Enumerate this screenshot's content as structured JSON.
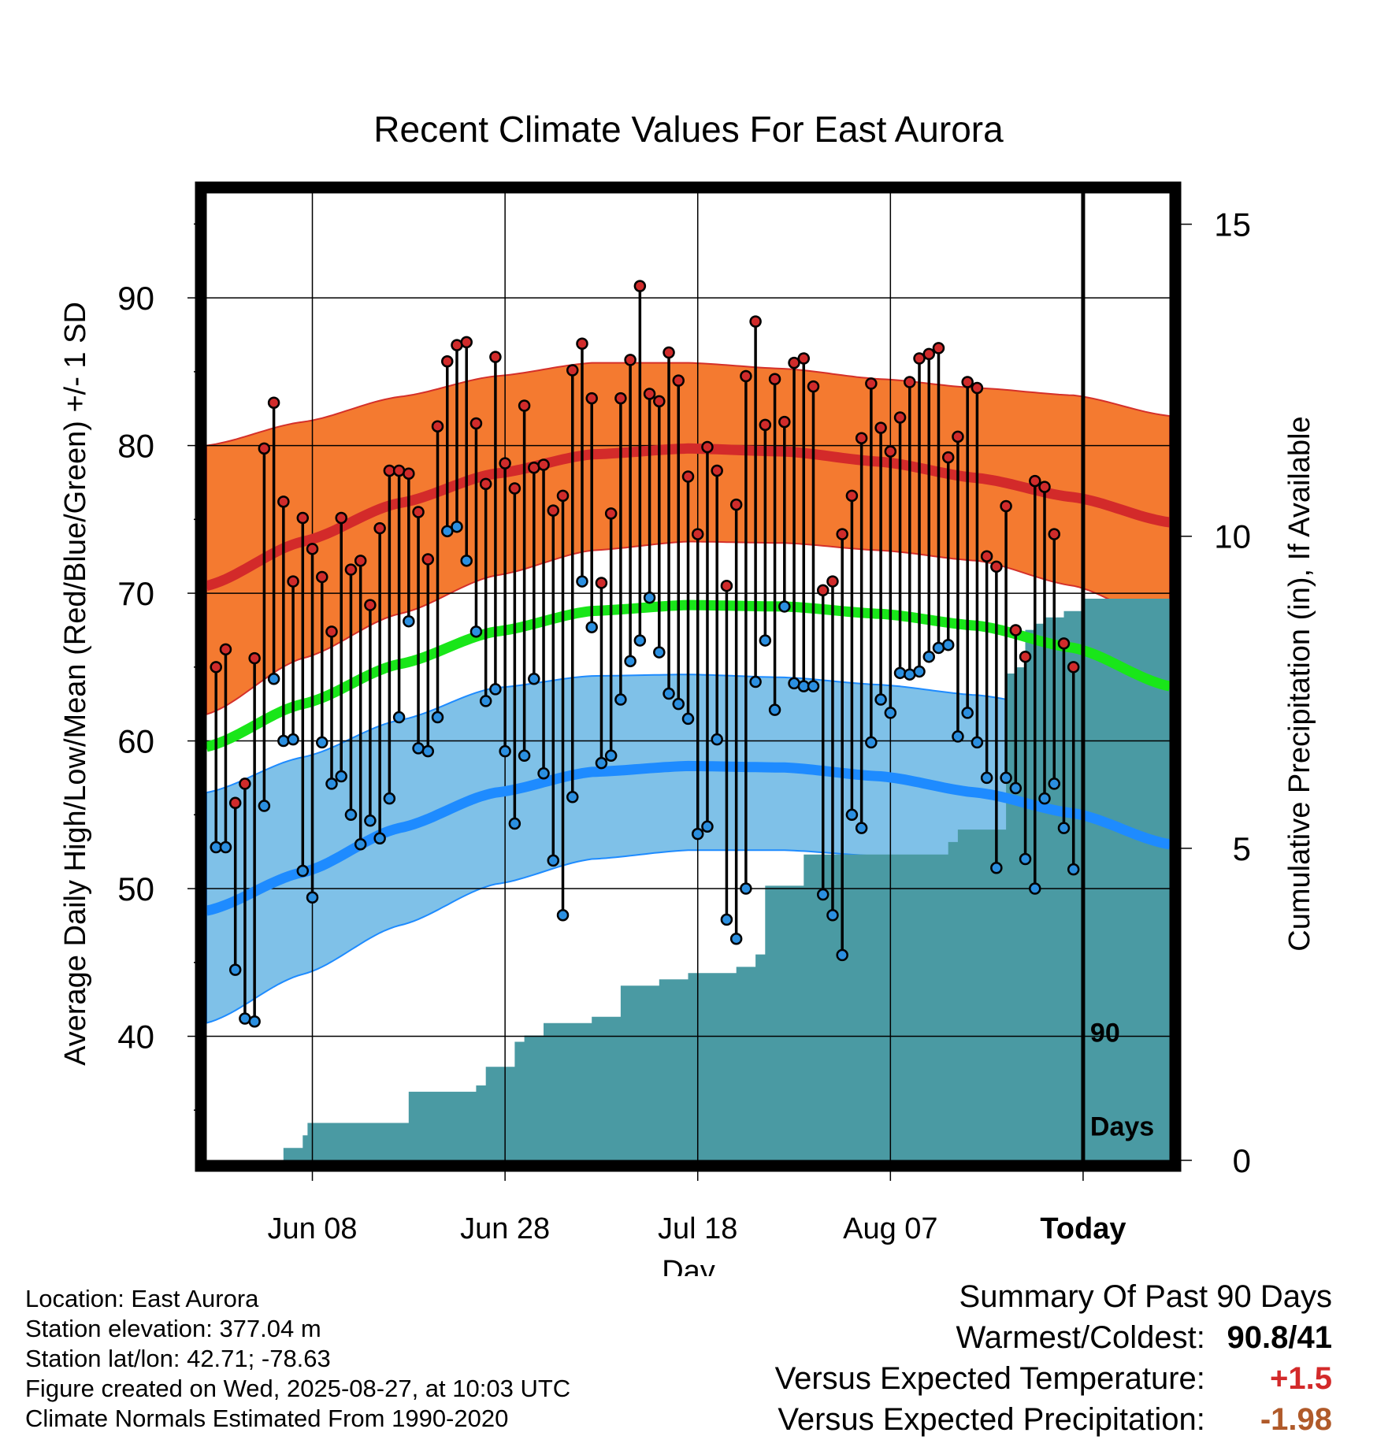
{
  "chart_data": {
    "type": "line",
    "title": "Recent Climate Values For East Aurora",
    "xlabel": "Day",
    "ylabel_left": "Average Daily High/Low/Mean (Red/Blue/Green) +/- 1 SD",
    "ylabel_right": "Cumulative Precipitation (in), If Available",
    "today_label": "Today",
    "window_label_1": "90",
    "window_label_2": "Days",
    "x_tick_labels": [
      {
        "day": 11,
        "label": "Jun 08"
      },
      {
        "day": 31,
        "label": "Jun 28"
      },
      {
        "day": 51,
        "label": "Jul 18"
      },
      {
        "day": 71,
        "label": "Aug 07"
      },
      {
        "day": 91,
        "label": "Today"
      }
    ],
    "xlim": [
      0,
      100
    ],
    "ylim_temp": [
      31.6,
      97.1
    ],
    "yticks_temp": [
      40,
      50,
      60,
      70,
      80,
      90
    ],
    "ylim_precip": [
      0,
      15.5
    ],
    "yticks_precip": [
      0,
      5,
      10,
      15
    ],
    "grid": true,
    "colors": {
      "high_band": "#f47a30",
      "high_line": "#d32a2a",
      "low_band": "#7fc1e8",
      "low_line": "#1e8bff",
      "mean_line": "#19e619",
      "precip": "#4a9aa3",
      "high_dot": "#d02b2b",
      "low_dot": "#2b8fe0"
    },
    "normals": {
      "day": [
        0,
        10,
        20,
        30,
        40,
        50,
        60,
        70,
        80,
        90,
        100
      ],
      "high_mean": [
        70.5,
        73.5,
        76.1,
        78.1,
        79.4,
        79.8,
        79.6,
        78.9,
        77.8,
        76.5,
        74.8
      ],
      "high_upper": [
        80.0,
        81.6,
        83.3,
        84.7,
        85.6,
        85.6,
        85.2,
        84.5,
        83.9,
        83.4,
        82.0
      ],
      "high_lower": [
        61.8,
        65.6,
        68.6,
        71.2,
        72.9,
        73.5,
        73.4,
        72.9,
        72.2,
        70.5,
        67.8
      ],
      "mean": [
        59.6,
        62.5,
        65.2,
        67.4,
        68.8,
        69.2,
        69.1,
        68.6,
        67.8,
        66.3,
        63.7
      ],
      "low_mean": [
        48.5,
        51.1,
        54.1,
        56.5,
        57.9,
        58.3,
        58.2,
        57.6,
        56.5,
        55.1,
        53.0
      ],
      "low_upper": [
        56.5,
        58.9,
        61.4,
        63.6,
        64.4,
        64.5,
        64.3,
        63.8,
        63.1,
        62.0,
        60.1
      ],
      "low_lower": [
        40.9,
        44.2,
        47.5,
        50.3,
        52.0,
        52.6,
        52.6,
        52.2,
        51.4,
        49.5,
        46.3
      ]
    },
    "series": [
      {
        "name": "High",
        "values": [
          65.0,
          66.2,
          55.8,
          57.1,
          65.6,
          79.8,
          82.9,
          76.2,
          70.8,
          75.1,
          73.0,
          71.1,
          67.4,
          75.1,
          71.6,
          72.2,
          69.2,
          74.4,
          78.3,
          78.3,
          78.1,
          75.5,
          72.3,
          81.3,
          85.7,
          86.8,
          87.0,
          81.5,
          77.4,
          86.0,
          78.8,
          77.1,
          82.7,
          78.5,
          78.7,
          75.6,
          76.6,
          85.1,
          86.9,
          83.2,
          70.7,
          75.4,
          83.2,
          85.8,
          90.8,
          83.5,
          83.0,
          86.3,
          84.4,
          77.9,
          74.0,
          79.9,
          78.3,
          70.5,
          76.0,
          84.7,
          88.4,
          81.4,
          84.5,
          81.6,
          85.6,
          85.9,
          84.0,
          70.2,
          70.8,
          74.0,
          76.6,
          80.5,
          84.2,
          81.2,
          79.6,
          81.9,
          84.3,
          85.9,
          86.2,
          86.6,
          79.2,
          80.6,
          84.3,
          83.9,
          72.5,
          71.8,
          75.9,
          67.5,
          65.7,
          77.6,
          77.2,
          74.0,
          66.6,
          65.0
        ]
      },
      {
        "name": "Low",
        "values": [
          52.8,
          52.8,
          44.5,
          41.2,
          41.0,
          55.6,
          64.2,
          60.0,
          60.1,
          51.2,
          49.4,
          59.9,
          57.1,
          57.6,
          55.0,
          53.0,
          54.6,
          53.4,
          56.1,
          61.6,
          68.1,
          59.5,
          59.3,
          61.6,
          74.2,
          74.5,
          72.2,
          67.4,
          62.7,
          63.5,
          59.3,
          54.4,
          59.0,
          64.2,
          57.8,
          51.9,
          48.2,
          56.2,
          70.8,
          67.7,
          58.5,
          59.0,
          62.8,
          65.4,
          66.8,
          69.7,
          66.0,
          63.2,
          62.5,
          61.5,
          53.7,
          54.2,
          60.1,
          47.9,
          46.6,
          50.0,
          64.0,
          66.8,
          62.1,
          69.1,
          63.9,
          63.7,
          63.7,
          49.6,
          48.2,
          45.5,
          55.0,
          54.1,
          59.9,
          62.8,
          61.9,
          64.6,
          64.5,
          64.7,
          65.7,
          66.3,
          66.5,
          60.3,
          61.9,
          59.9,
          57.5,
          51.4,
          57.5,
          56.8,
          52.0,
          50.0,
          56.1,
          57.1,
          54.1,
          51.3
        ]
      },
      {
        "name": "Cumulative Precipitation",
        "x": [
          8,
          10,
          10.5,
          19,
          21,
          28,
          29,
          31,
          32,
          33,
          35,
          40,
          43,
          44,
          46,
          47,
          50,
          55,
          57,
          58,
          60,
          62,
          63,
          64,
          65,
          66,
          68,
          70,
          71,
          73,
          74,
          75,
          76,
          77,
          78,
          79,
          80,
          81,
          82,
          83,
          84,
          85,
          86,
          87,
          88,
          89,
          90,
          91,
          92,
          100
        ],
        "values": [
          0.2,
          0.4,
          0.6,
          0.6,
          1.1,
          1.2,
          1.5,
          1.5,
          1.9,
          2.0,
          2.2,
          2.3,
          2.8,
          2.8,
          2.8,
          2.9,
          3.0,
          3.1,
          3.3,
          4.4,
          4.4,
          4.9,
          4.9,
          4.9,
          4.9,
          4.9,
          4.9,
          4.9,
          4.9,
          4.9,
          4.9,
          4.9,
          4.9,
          5.1,
          5.3,
          5.3,
          5.3,
          5.3,
          5.3,
          7.8,
          7.9,
          8.5,
          8.6,
          8.7,
          8.7,
          8.8,
          8.8,
          9.0,
          9.0,
          9.0
        ]
      }
    ]
  },
  "meta": {
    "location": "Location: East Aurora",
    "elevation": "Station elevation: 377.04 m",
    "latlon": "Station lat/lon: 42.71; -78.63",
    "created": "Figure created on Wed, 2025-08-27, at 10:03 UTC",
    "normals": "Climate Normals Estimated From 1990-2020"
  },
  "summary": {
    "title": "Summary Of Past 90 Days",
    "warm_cold_label": "Warmest/Coldest:",
    "warm_cold_value": "90.8/41",
    "temp_label": "Versus Expected Temperature:",
    "temp_value": "+1.5",
    "temp_color": "#d32a2a",
    "precip_label": "Versus Expected Precipitation:",
    "precip_value": "-1.98",
    "precip_color": "#b05a2a"
  }
}
